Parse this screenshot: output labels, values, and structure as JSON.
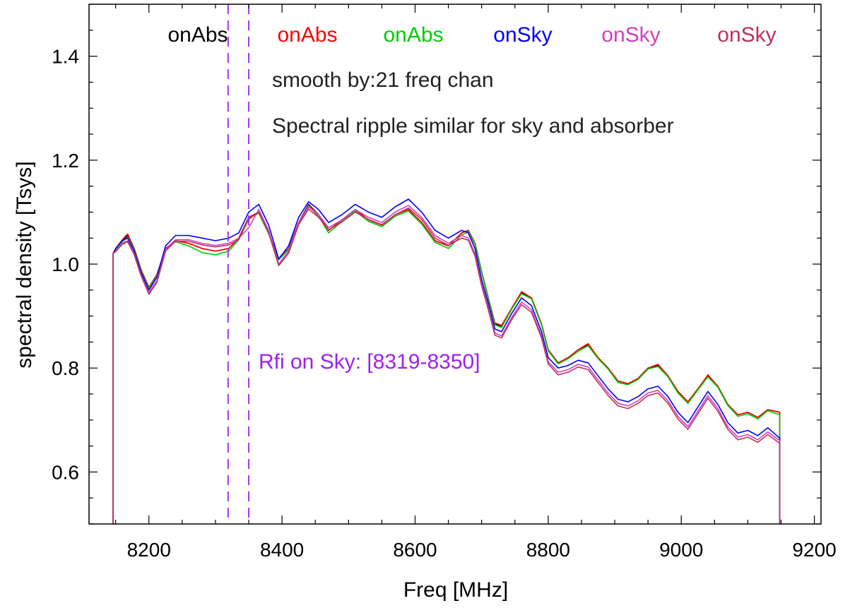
{
  "chart_data": {
    "type": "line",
    "xlabel": "Freq [MHz]",
    "ylabel": "spectral density [Tsys]",
    "xlim": [
      8110,
      9210
    ],
    "ylim": [
      0.5,
      1.5
    ],
    "xticks": [
      8200,
      8400,
      8600,
      8800,
      9000,
      9200
    ],
    "xtick_labels": [
      "8200",
      "8400",
      "8600",
      "8800",
      "9000",
      "9200"
    ],
    "yticks": [
      0.6,
      0.8,
      1.0,
      1.2,
      1.4
    ],
    "ytick_labels": [
      "0.6",
      "0.8",
      "1.0",
      "1.2",
      "1.4"
    ],
    "grid": false,
    "legend_placement": "top",
    "legend": [
      {
        "label": "onAbs",
        "color": "#000000"
      },
      {
        "label": "onAbs",
        "color": "#ff0000"
      },
      {
        "label": "onAbs",
        "color": "#00cc00"
      },
      {
        "label": "onSky",
        "color": "#0000ff"
      },
      {
        "label": "onSky",
        "color": "#d040c0"
      },
      {
        "label": "onSky",
        "color": "#c03060"
      }
    ],
    "annotations": {
      "smooth": "smooth by:21 freq chan",
      "ripple": "Spectral ripple similar for sky and absorber",
      "rfi": "Rfi on Sky: [8319-8350]"
    },
    "rfi_color": "#a020f0",
    "rfi_range": [
      8319,
      8350
    ],
    "x": [
      8146,
      8150,
      8160,
      8168,
      8178,
      8188,
      8200,
      8212,
      8225,
      8240,
      8260,
      8280,
      8300,
      8320,
      8335,
      8350,
      8365,
      8380,
      8395,
      8410,
      8425,
      8440,
      8455,
      8470,
      8490,
      8510,
      8530,
      8550,
      8570,
      8590,
      8610,
      8630,
      8650,
      8670,
      8680,
      8690,
      8700,
      8710,
      8720,
      8730,
      8745,
      8760,
      8775,
      8790,
      8800,
      8815,
      8830,
      8845,
      8860,
      8875,
      8890,
      8905,
      8920,
      8935,
      8950,
      8965,
      8980,
      8995,
      9010,
      9025,
      9040,
      9055,
      9070,
      9085,
      9100,
      9115,
      9130,
      9148
    ],
    "series": [
      {
        "color": "#000000",
        "values": [
          1.02,
          1.03,
          1.045,
          1.055,
          1.03,
          0.99,
          0.955,
          0.98,
          1.03,
          1.045,
          1.04,
          1.03,
          1.025,
          1.03,
          1.05,
          1.09,
          1.1,
          1.06,
          1.01,
          1.03,
          1.08,
          1.115,
          1.095,
          1.065,
          1.085,
          1.105,
          1.085,
          1.075,
          1.095,
          1.105,
          1.08,
          1.045,
          1.035,
          1.06,
          1.065,
          1.04,
          0.985,
          0.935,
          0.885,
          0.88,
          0.915,
          0.945,
          0.935,
          0.885,
          0.835,
          0.81,
          0.82,
          0.835,
          0.845,
          0.82,
          0.8,
          0.775,
          0.77,
          0.78,
          0.8,
          0.805,
          0.785,
          0.755,
          0.735,
          0.76,
          0.785,
          0.765,
          0.73,
          0.71,
          0.715,
          0.705,
          0.72,
          0.715
        ]
      },
      {
        "color": "#ff0000",
        "values": [
          1.02,
          1.03,
          1.047,
          1.058,
          1.03,
          0.99,
          0.955,
          0.98,
          1.03,
          1.045,
          1.04,
          1.03,
          1.025,
          1.03,
          1.05,
          1.09,
          1.1,
          1.06,
          1.01,
          1.03,
          1.08,
          1.113,
          1.095,
          1.065,
          1.085,
          1.105,
          1.085,
          1.075,
          1.095,
          1.105,
          1.08,
          1.045,
          1.035,
          1.06,
          1.065,
          1.04,
          0.985,
          0.935,
          0.887,
          0.882,
          0.915,
          0.947,
          0.935,
          0.885,
          0.835,
          0.81,
          0.82,
          0.835,
          0.847,
          0.82,
          0.8,
          0.775,
          0.77,
          0.78,
          0.8,
          0.807,
          0.785,
          0.755,
          0.735,
          0.76,
          0.787,
          0.765,
          0.73,
          0.71,
          0.715,
          0.705,
          0.72,
          0.715
        ]
      },
      {
        "color": "#00cc00",
        "values": [
          1.02,
          1.028,
          1.043,
          1.052,
          1.028,
          0.988,
          0.953,
          0.978,
          1.028,
          1.043,
          1.035,
          1.022,
          1.018,
          1.025,
          1.047,
          1.088,
          1.098,
          1.058,
          1.008,
          1.028,
          1.078,
          1.112,
          1.092,
          1.06,
          1.082,
          1.102,
          1.082,
          1.072,
          1.092,
          1.102,
          1.077,
          1.042,
          1.03,
          1.056,
          1.062,
          1.038,
          0.983,
          0.933,
          0.883,
          0.878,
          0.913,
          0.943,
          0.933,
          0.883,
          0.833,
          0.808,
          0.818,
          0.832,
          0.843,
          0.818,
          0.798,
          0.772,
          0.768,
          0.778,
          0.798,
          0.803,
          0.783,
          0.752,
          0.732,
          0.758,
          0.783,
          0.763,
          0.728,
          0.707,
          0.712,
          0.702,
          0.718,
          0.71
        ]
      },
      {
        "color": "#0000ff",
        "values": [
          1.02,
          1.03,
          1.045,
          1.05,
          1.025,
          0.985,
          0.95,
          0.975,
          1.035,
          1.055,
          1.055,
          1.05,
          1.045,
          1.05,
          1.06,
          1.1,
          1.115,
          1.075,
          1.01,
          1.035,
          1.09,
          1.12,
          1.105,
          1.08,
          1.095,
          1.115,
          1.1,
          1.09,
          1.11,
          1.125,
          1.1,
          1.065,
          1.05,
          1.065,
          1.06,
          1.03,
          0.97,
          0.925,
          0.875,
          0.87,
          0.905,
          0.935,
          0.92,
          0.87,
          0.82,
          0.8,
          0.805,
          0.815,
          0.81,
          0.785,
          0.76,
          0.74,
          0.735,
          0.745,
          0.76,
          0.765,
          0.745,
          0.715,
          0.695,
          0.725,
          0.755,
          0.73,
          0.695,
          0.675,
          0.68,
          0.67,
          0.685,
          0.665
        ]
      },
      {
        "color": "#d040c0",
        "values": [
          1.02,
          1.025,
          1.04,
          1.045,
          1.02,
          0.98,
          0.945,
          0.968,
          1.028,
          1.047,
          1.047,
          1.04,
          1.036,
          1.04,
          1.05,
          1.07,
          1.105,
          1.065,
          1.0,
          1.025,
          1.08,
          1.11,
          1.095,
          1.07,
          1.085,
          1.105,
          1.09,
          1.08,
          1.1,
          1.113,
          1.09,
          1.055,
          1.04,
          1.055,
          1.05,
          1.02,
          0.962,
          0.917,
          0.867,
          0.862,
          0.897,
          0.927,
          0.912,
          0.862,
          0.812,
          0.792,
          0.797,
          0.807,
          0.802,
          0.777,
          0.752,
          0.732,
          0.727,
          0.737,
          0.752,
          0.757,
          0.737,
          0.707,
          0.687,
          0.717,
          0.747,
          0.722,
          0.687,
          0.667,
          0.672,
          0.662,
          0.677,
          0.66
        ]
      },
      {
        "color": "#c03060",
        "values": [
          1.02,
          1.024,
          1.038,
          1.043,
          1.018,
          0.978,
          0.942,
          0.965,
          1.025,
          1.044,
          1.044,
          1.037,
          1.033,
          1.037,
          1.047,
          1.086,
          1.1,
          1.06,
          0.997,
          1.021,
          1.076,
          1.106,
          1.09,
          1.066,
          1.081,
          1.1,
          1.086,
          1.076,
          1.095,
          1.108,
          1.086,
          1.05,
          1.036,
          1.05,
          1.046,
          1.015,
          0.958,
          0.912,
          0.863,
          0.858,
          0.893,
          0.922,
          0.907,
          0.858,
          0.808,
          0.787,
          0.792,
          0.802,
          0.797,
          0.772,
          0.747,
          0.727,
          0.722,
          0.732,
          0.747,
          0.752,
          0.732,
          0.702,
          0.682,
          0.712,
          0.742,
          0.717,
          0.682,
          0.662,
          0.667,
          0.657,
          0.672,
          0.655
        ]
      }
    ]
  }
}
